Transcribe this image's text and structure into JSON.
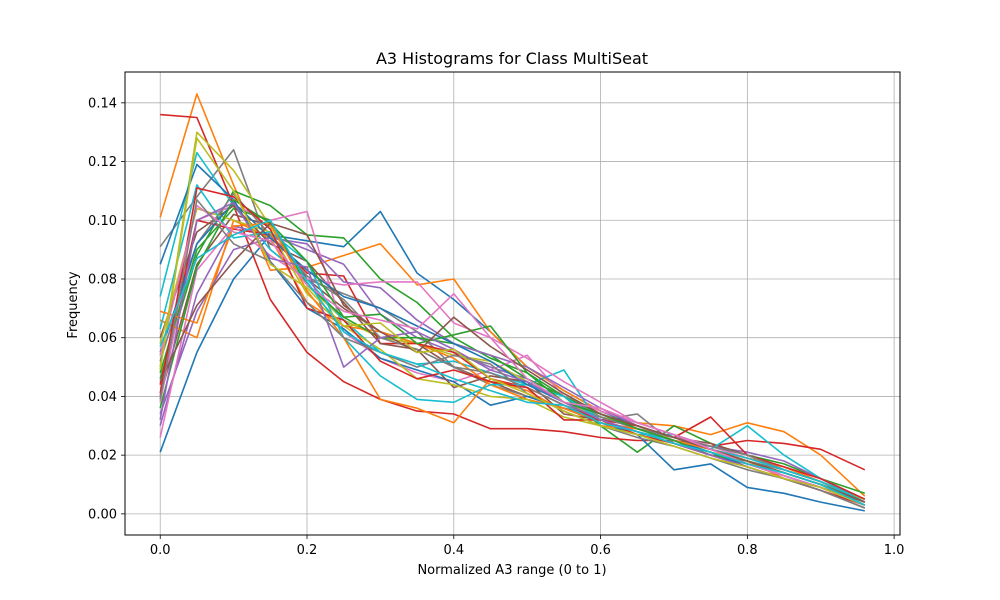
{
  "chart_data": {
    "type": "line",
    "title": "A3 Histograms for Class MultiSeat",
    "xlabel": "Normalized A3 range (0 to 1)",
    "ylabel": "Frequency",
    "xlim": [
      -0.048,
      1.008
    ],
    "ylim": [
      -0.0072,
      0.1505
    ],
    "grid": true,
    "x_ticks": [
      0.0,
      0.2,
      0.4,
      0.6,
      0.8,
      1.0
    ],
    "x_tick_labels": [
      "0.0",
      "0.2",
      "0.4",
      "0.6",
      "0.8",
      "1.0"
    ],
    "y_ticks": [
      0.0,
      0.02,
      0.04,
      0.06,
      0.08,
      0.1,
      0.12,
      0.14
    ],
    "y_tick_labels": [
      "0.00",
      "0.02",
      "0.04",
      "0.06",
      "0.08",
      "0.10",
      "0.12",
      "0.14"
    ],
    "x": [
      0.0,
      0.05,
      0.1,
      0.15,
      0.2,
      0.25,
      0.3,
      0.35,
      0.4,
      0.45,
      0.5,
      0.55,
      0.6,
      0.65,
      0.7,
      0.75,
      0.8,
      0.85,
      0.9,
      0.96
    ],
    "colors": [
      "#1f77b4",
      "#ff7f0e",
      "#2ca02c",
      "#d62728",
      "#9467bd",
      "#8c564b",
      "#e377c2",
      "#7f7f7f",
      "#bcbd22",
      "#17becf"
    ],
    "series": [
      {
        "values": [
          0.021,
          0.055,
          0.08,
          0.095,
          0.093,
          0.091,
          0.103,
          0.082,
          0.073,
          0.062,
          0.05,
          0.042,
          0.035,
          0.03,
          0.025,
          0.021,
          0.017,
          0.013,
          0.009,
          0.004
        ]
      },
      {
        "values": [
          0.101,
          0.143,
          0.112,
          0.083,
          0.084,
          0.088,
          0.092,
          0.078,
          0.08,
          0.062,
          0.05,
          0.042,
          0.035,
          0.031,
          0.03,
          0.027,
          0.031,
          0.028,
          0.02,
          0.006
        ]
      },
      {
        "values": [
          0.046,
          0.088,
          0.11,
          0.105,
          0.095,
          0.094,
          0.08,
          0.072,
          0.06,
          0.053,
          0.048,
          0.04,
          0.03,
          0.021,
          0.03,
          0.024,
          0.02,
          0.017,
          0.012,
          0.007
        ]
      },
      {
        "values": [
          0.136,
          0.135,
          0.105,
          0.073,
          0.055,
          0.045,
          0.039,
          0.035,
          0.034,
          0.029,
          0.029,
          0.028,
          0.026,
          0.025,
          0.025,
          0.023,
          0.025,
          0.024,
          0.022,
          0.015
        ]
      },
      {
        "values": [
          0.03,
          0.075,
          0.098,
          0.095,
          0.09,
          0.085,
          0.068,
          0.06,
          0.055,
          0.05,
          0.046,
          0.04,
          0.033,
          0.029,
          0.026,
          0.023,
          0.021,
          0.018,
          0.012,
          0.005
        ]
      },
      {
        "values": [
          0.04,
          0.085,
          0.102,
          0.098,
          0.08,
          0.07,
          0.062,
          0.058,
          0.05,
          0.045,
          0.04,
          0.036,
          0.033,
          0.03,
          0.026,
          0.024,
          0.02,
          0.015,
          0.011,
          0.004
        ]
      },
      {
        "values": [
          0.038,
          0.1,
          0.105,
          0.1,
          0.103,
          0.062,
          0.053,
          0.048,
          0.045,
          0.049,
          0.054,
          0.04,
          0.035,
          0.031,
          0.027,
          0.023,
          0.019,
          0.016,
          0.012,
          0.005
        ]
      },
      {
        "values": [
          0.091,
          0.108,
          0.124,
          0.09,
          0.08,
          0.075,
          0.07,
          0.062,
          0.05,
          0.044,
          0.04,
          0.036,
          0.032,
          0.034,
          0.024,
          0.02,
          0.018,
          0.015,
          0.011,
          0.005
        ]
      },
      {
        "values": [
          0.05,
          0.13,
          0.117,
          0.098,
          0.078,
          0.066,
          0.06,
          0.058,
          0.054,
          0.052,
          0.045,
          0.038,
          0.033,
          0.03,
          0.025,
          0.022,
          0.018,
          0.014,
          0.01,
          0.005
        ]
      },
      {
        "values": [
          0.074,
          0.123,
          0.105,
          0.09,
          0.08,
          0.066,
          0.055,
          0.051,
          0.052,
          0.048,
          0.044,
          0.049,
          0.03,
          0.027,
          0.027,
          0.022,
          0.03,
          0.02,
          0.012,
          0.004
        ]
      },
      {
        "values": [
          0.085,
          0.119,
          0.107,
          0.086,
          0.07,
          0.063,
          0.053,
          0.049,
          0.045,
          0.037,
          0.04,
          0.036,
          0.031,
          0.027,
          0.015,
          0.017,
          0.009,
          0.007,
          0.004,
          0.001
        ]
      },
      {
        "values": [
          0.066,
          0.06,
          0.1,
          0.094,
          0.072,
          0.064,
          0.062,
          0.058,
          0.053,
          0.044,
          0.039,
          0.036,
          0.031,
          0.029,
          0.025,
          0.022,
          0.019,
          0.016,
          0.011,
          0.004
        ]
      },
      {
        "values": [
          0.048,
          0.09,
          0.104,
          0.1,
          0.078,
          0.067,
          0.06,
          0.06,
          0.058,
          0.054,
          0.046,
          0.04,
          0.034,
          0.03,
          0.026,
          0.022,
          0.017,
          0.014,
          0.01,
          0.003
        ]
      },
      {
        "values": [
          0.044,
          0.1,
          0.097,
          0.095,
          0.082,
          0.081,
          0.058,
          0.058,
          0.055,
          0.046,
          0.043,
          0.037,
          0.032,
          0.03,
          0.026,
          0.033,
          0.02,
          0.016,
          0.012,
          0.005
        ]
      },
      {
        "values": [
          0.034,
          0.069,
          0.09,
          0.094,
          0.092,
          0.079,
          0.077,
          0.066,
          0.058,
          0.054,
          0.05,
          0.043,
          0.036,
          0.03,
          0.026,
          0.022,
          0.018,
          0.014,
          0.01,
          0.004
        ]
      },
      {
        "values": [
          0.06,
          0.096,
          0.105,
          0.092,
          0.086,
          0.072,
          0.058,
          0.056,
          0.043,
          0.047,
          0.045,
          0.034,
          0.032,
          0.028,
          0.024,
          0.02,
          0.017,
          0.013,
          0.009,
          0.003
        ]
      },
      {
        "values": [
          0.026,
          0.083,
          0.098,
          0.088,
          0.08,
          0.078,
          0.079,
          0.079,
          0.065,
          0.06,
          0.053,
          0.045,
          0.038,
          0.031,
          0.027,
          0.022,
          0.018,
          0.013,
          0.009,
          0.003
        ]
      },
      {
        "values": [
          0.052,
          0.092,
          0.109,
          0.095,
          0.081,
          0.073,
          0.06,
          0.056,
          0.05,
          0.048,
          0.043,
          0.037,
          0.033,
          0.029,
          0.026,
          0.023,
          0.02,
          0.015,
          0.011,
          0.004
        ]
      },
      {
        "values": [
          0.058,
          0.104,
          0.1,
          0.096,
          0.075,
          0.064,
          0.056,
          0.046,
          0.044,
          0.04,
          0.039,
          0.033,
          0.03,
          0.027,
          0.024,
          0.021,
          0.018,
          0.014,
          0.01,
          0.003
        ]
      },
      {
        "values": [
          0.063,
          0.112,
          0.094,
          0.096,
          0.086,
          0.06,
          0.047,
          0.039,
          0.038,
          0.044,
          0.044,
          0.04,
          0.032,
          0.028,
          0.025,
          0.022,
          0.019,
          0.015,
          0.011,
          0.004
        ]
      },
      {
        "values": [
          0.055,
          0.092,
          0.106,
          0.094,
          0.083,
          0.074,
          0.07,
          0.064,
          0.058,
          0.052,
          0.044,
          0.038,
          0.034,
          0.029,
          0.025,
          0.021,
          0.016,
          0.012,
          0.008,
          0.002
        ]
      },
      {
        "values": [
          0.069,
          0.065,
          0.098,
          0.099,
          0.076,
          0.06,
          0.039,
          0.036,
          0.031,
          0.046,
          0.042,
          0.035,
          0.03,
          0.029,
          0.025,
          0.022,
          0.018,
          0.012,
          0.008,
          0.002
        ]
      },
      {
        "values": [
          0.036,
          0.084,
          0.107,
          0.099,
          0.086,
          0.067,
          0.068,
          0.058,
          0.061,
          0.064,
          0.048,
          0.038,
          0.034,
          0.029,
          0.025,
          0.02,
          0.018,
          0.014,
          0.01,
          0.004
        ]
      },
      {
        "values": [
          0.041,
          0.111,
          0.108,
          0.097,
          0.07,
          0.066,
          0.052,
          0.046,
          0.049,
          0.045,
          0.043,
          0.032,
          0.032,
          0.027,
          0.024,
          0.02,
          0.016,
          0.012,
          0.008,
          0.003
        ]
      },
      {
        "values": [
          0.032,
          0.1,
          0.106,
          0.087,
          0.084,
          0.05,
          0.06,
          0.062,
          0.056,
          0.049,
          0.045,
          0.038,
          0.032,
          0.028,
          0.024,
          0.02,
          0.016,
          0.012,
          0.009,
          0.003
        ]
      },
      {
        "values": [
          0.045,
          0.071,
          0.086,
          0.099,
          0.095,
          0.071,
          0.062,
          0.055,
          0.067,
          0.057,
          0.049,
          0.041,
          0.034,
          0.03,
          0.026,
          0.022,
          0.018,
          0.014,
          0.01,
          0.004
        ]
      },
      {
        "values": [
          0.054,
          0.105,
          0.096,
          0.093,
          0.078,
          0.069,
          0.066,
          0.063,
          0.075,
          0.06,
          0.046,
          0.038,
          0.036,
          0.031,
          0.027,
          0.022,
          0.017,
          0.013,
          0.009,
          0.003
        ]
      },
      {
        "values": [
          0.039,
          0.107,
          0.092,
          0.086,
          0.072,
          0.06,
          0.055,
          0.05,
          0.054,
          0.051,
          0.041,
          0.035,
          0.03,
          0.026,
          0.023,
          0.019,
          0.015,
          0.012,
          0.008,
          0.002
        ]
      },
      {
        "values": [
          0.049,
          0.128,
          0.11,
          0.085,
          0.077,
          0.064,
          0.065,
          0.055,
          0.056,
          0.046,
          0.041,
          0.035,
          0.03,
          0.027,
          0.023,
          0.019,
          0.016,
          0.012,
          0.009,
          0.003
        ]
      },
      {
        "values": [
          0.057,
          0.087,
          0.095,
          0.1,
          0.079,
          0.062,
          0.055,
          0.051,
          0.046,
          0.042,
          0.038,
          0.037,
          0.031,
          0.028,
          0.024,
          0.021,
          0.017,
          0.014,
          0.01,
          0.003
        ]
      }
    ]
  }
}
